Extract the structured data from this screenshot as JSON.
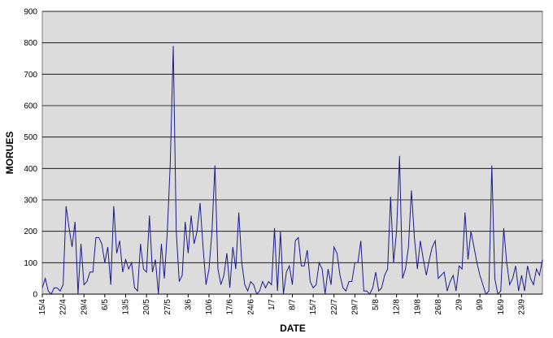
{
  "chart_data": {
    "type": "line",
    "x_label": "DATE",
    "y_label": "MORUES",
    "categories": [
      "15/4",
      null,
      null,
      null,
      null,
      null,
      null,
      "22/4",
      null,
      null,
      null,
      null,
      null,
      null,
      "29/4",
      null,
      null,
      null,
      null,
      null,
      null,
      "6/5",
      null,
      null,
      null,
      null,
      null,
      null,
      "13/5",
      null,
      null,
      null,
      null,
      null,
      null,
      "20/5",
      null,
      null,
      null,
      null,
      null,
      null,
      "27/5",
      null,
      null,
      null,
      null,
      null,
      null,
      "3/6",
      null,
      null,
      null,
      null,
      null,
      null,
      "10/6",
      null,
      null,
      null,
      null,
      null,
      null,
      "17/6",
      null,
      null,
      null,
      null,
      null,
      null,
      "24/6",
      null,
      null,
      null,
      null,
      null,
      null,
      "1/7",
      null,
      null,
      null,
      null,
      null,
      null,
      "8/7",
      null,
      null,
      null,
      null,
      null,
      null,
      "15/7",
      null,
      null,
      null,
      null,
      null,
      null,
      "22/7",
      null,
      null,
      null,
      null,
      null,
      null,
      "29/7",
      null,
      null,
      null,
      null,
      null,
      null,
      "5/8",
      null,
      null,
      null,
      null,
      null,
      null,
      "12/8",
      null,
      null,
      null,
      null,
      null,
      null,
      "19/8",
      null,
      null,
      null,
      null,
      null,
      null,
      "26/8",
      null,
      null,
      null,
      null,
      null,
      null,
      "2/9",
      null,
      null,
      null,
      null,
      null,
      null,
      "9/9",
      null,
      null,
      null,
      null,
      null,
      null,
      "16/9",
      null,
      null,
      null,
      null,
      null,
      null,
      "23/9",
      null,
      null,
      null,
      null,
      null,
      null,
      null
    ],
    "values": [
      20,
      50,
      10,
      0,
      20,
      20,
      10,
      30,
      280,
      210,
      150,
      230,
      0,
      160,
      30,
      40,
      70,
      70,
      180,
      180,
      160,
      100,
      150,
      30,
      280,
      130,
      170,
      70,
      110,
      80,
      100,
      20,
      10,
      160,
      80,
      70,
      250,
      70,
      110,
      0,
      160,
      50,
      200,
      420,
      790,
      200,
      40,
      60,
      230,
      130,
      250,
      160,
      200,
      290,
      150,
      30,
      80,
      200,
      410,
      80,
      30,
      60,
      130,
      20,
      150,
      80,
      260,
      100,
      30,
      10,
      40,
      30,
      0,
      10,
      40,
      20,
      40,
      30,
      210,
      10,
      200,
      0,
      70,
      90,
      30,
      170,
      180,
      90,
      90,
      140,
      40,
      20,
      30,
      100,
      80,
      0,
      80,
      30,
      150,
      130,
      60,
      20,
      10,
      40,
      40,
      100,
      100,
      170,
      10,
      10,
      0,
      20,
      70,
      10,
      20,
      60,
      80,
      310,
      100,
      200,
      440,
      50,
      80,
      150,
      330,
      180,
      80,
      170,
      110,
      60,
      110,
      150,
      170,
      50,
      60,
      70,
      10,
      40,
      60,
      10,
      90,
      80,
      260,
      110,
      200,
      150,
      100,
      60,
      30,
      0,
      10,
      410,
      50,
      0,
      10,
      210,
      100,
      30,
      50,
      90,
      10,
      60,
      10,
      90,
      50,
      30,
      80,
      60,
      110
    ],
    "color": "#1c1c8a",
    "plot_background": "#dcdcdc",
    "grid": true,
    "ylim": [
      0,
      900
    ],
    "yticks": [
      0,
      100,
      200,
      300,
      400,
      500,
      600,
      700,
      800,
      900
    ]
  }
}
